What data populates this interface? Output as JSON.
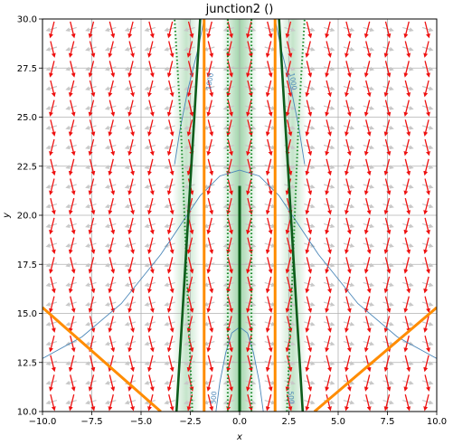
{
  "chart_data": {
    "type": "vector-field",
    "title": "junction2 ()",
    "xlabel": "x",
    "ylabel": "y",
    "xlim": [
      -10.0,
      10.0
    ],
    "ylim": [
      10.0,
      30.0
    ],
    "x_ticks": [
      "−10.0",
      "−7.5",
      "−5.0",
      "−2.5",
      "0.0",
      "2.5",
      "5.0",
      "7.5",
      "10.0"
    ],
    "x_tick_values": [
      -10,
      -7.5,
      -5,
      -2.5,
      0,
      2.5,
      5,
      7.5,
      10
    ],
    "y_ticks": [
      "10.0",
      "12.5",
      "15.0",
      "17.5",
      "20.0",
      "22.5",
      "25.0",
      "27.5",
      "30.0"
    ],
    "y_tick_values": [
      10,
      12.5,
      15,
      17.5,
      20,
      22.5,
      25,
      27.5,
      30
    ],
    "grid": true,
    "contour_labels": [
      "1000",
      "1000",
      "500",
      "500"
    ],
    "colors": {
      "arrow_red": "#ee1111",
      "arrow_gray": "#c8c8c8",
      "contour_blue": "#4a86b8",
      "orange": "#ff8c00",
      "dark_green": "#0c5c1a",
      "dotted_green": "#1a8a2a",
      "shade_green": "#2ea043"
    },
    "orange_vertical_lines_x": [
      -1.8,
      1.8
    ],
    "orange_diagonal_lines": [
      {
        "x": [
          -10,
          -4.0
        ],
        "y": [
          15.3,
          10.0
        ]
      },
      {
        "x": [
          3.8,
          10
        ],
        "y": [
          10.0,
          15.3
        ]
      }
    ],
    "green_solid_curves": [
      {
        "x": [
          -3.2,
          -2.9,
          -2.6,
          -2.3,
          -2.0
        ],
        "y": [
          10,
          15,
          20,
          25,
          30
        ]
      },
      {
        "x": [
          3.2,
          2.9,
          2.6,
          2.3,
          2.0
        ],
        "y": [
          10,
          15,
          20,
          25,
          30
        ]
      }
    ],
    "green_center_line": {
      "x": [
        0.0,
        0.0
      ],
      "y": [
        10.0,
        21.5
      ]
    },
    "green_dotted_curves": [
      {
        "x": [
          -2.4,
          -2.6,
          -2.8,
          -3.0,
          -3.3
        ],
        "y": [
          10,
          15,
          20,
          25,
          30
        ]
      },
      {
        "x": [
          2.4,
          2.6,
          2.8,
          3.0,
          3.3
        ],
        "y": [
          10,
          15,
          20,
          25,
          30
        ]
      },
      {
        "x": [
          -0.6,
          -0.6
        ],
        "y": [
          10,
          30
        ]
      },
      {
        "x": [
          0.6,
          0.6
        ],
        "y": [
          10,
          30
        ]
      }
    ],
    "contour_1000": {
      "x": [
        -10,
        -8,
        -6,
        -4,
        -2,
        -1,
        0,
        1,
        2,
        4,
        6,
        8,
        10
      ],
      "y": [
        12.7,
        13.8,
        15.5,
        18.0,
        21.0,
        22.0,
        22.3,
        22.0,
        21.0,
        18.0,
        15.5,
        13.8,
        12.7
      ]
    },
    "contour_1000_upper": [
      {
        "x": [
          -3.3,
          -3.0,
          -2.6,
          -2.1,
          -1.8
        ],
        "y": [
          22.6,
          24.5,
          26.5,
          28.5,
          30
        ]
      },
      {
        "x": [
          3.3,
          3.0,
          2.6,
          2.1,
          1.8
        ],
        "y": [
          22.6,
          24.5,
          26.5,
          28.5,
          30
        ]
      }
    ],
    "contour_500": {
      "x": [
        -1.2,
        -1.0,
        -0.7,
        -0.4,
        0,
        0.4,
        0.7,
        1.0,
        1.2
      ],
      "y": [
        10,
        11.5,
        13.0,
        14.0,
        14.3,
        14.0,
        13.0,
        11.5,
        10
      ]
    },
    "quiver_x": [
      -9.5,
      -8.5,
      -7.5,
      -6.5,
      -5.5,
      -4.5,
      -3.5,
      -2.5,
      -1.5,
      -0.5,
      0.5,
      1.5,
      2.5,
      3.5,
      4.5,
      5.5,
      6.5,
      7.5,
      8.5,
      9.5
    ],
    "quiver_y": [
      10.5,
      11.5,
      12.5,
      13.5,
      14.5,
      15.5,
      16.5,
      17.5,
      18.5,
      19.5,
      20.5,
      21.5,
      22.5,
      23.5,
      24.5,
      25.5,
      26.5,
      27.5,
      28.5,
      29.5
    ]
  }
}
